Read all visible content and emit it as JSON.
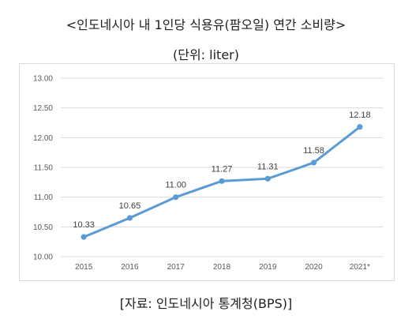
{
  "header": {
    "title": "<인도네시아 내 1인당 식용유(팜오일) 연간 소비량>",
    "unit": "(단위: liter)"
  },
  "footer": {
    "source": "[자료: 인도네시아 통계청(BPS)]"
  },
  "chart_data": {
    "type": "line",
    "title": "<인도네시아 내 1인당 식용유(팜오일) 연간 소비량>",
    "subtitle": "(단위: liter)",
    "xlabel": "",
    "ylabel": "",
    "categories": [
      "2015",
      "2016",
      "2017",
      "2018",
      "2019",
      "2020",
      "2021*"
    ],
    "series": [
      {
        "values": [
          10.33,
          10.65,
          11.0,
          11.27,
          11.31,
          11.58,
          12.18
        ]
      }
    ],
    "data_labels": [
      "10.33",
      "10.65",
      "11.00",
      "11.27",
      "11.31",
      "11.58",
      "12.18"
    ],
    "y_ticks": [
      "10.00",
      "10.50",
      "11.00",
      "11.50",
      "12.00",
      "12.50",
      "13.00"
    ],
    "ylim": [
      10.0,
      13.0
    ],
    "grid": true,
    "legend": "none",
    "colors": {
      "line": "#5B9BD5",
      "grid": "#d9d9d9",
      "text": "#595959"
    }
  }
}
